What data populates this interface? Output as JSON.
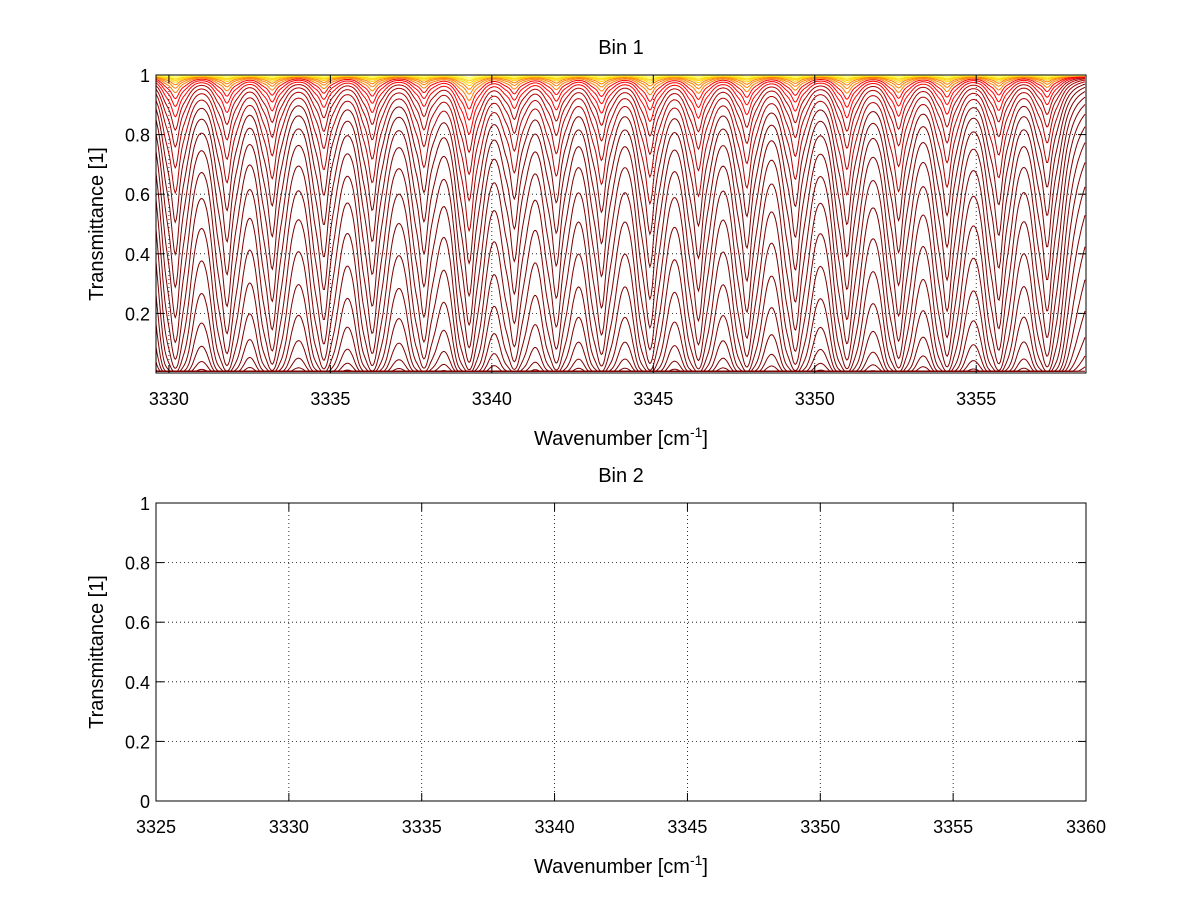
{
  "chart_data": [
    {
      "type": "line",
      "title": "Bin 1",
      "xlabel": "Wavenumber [cm",
      "xlabel_sup": "-1",
      "xlabel_end": "]",
      "ylabel": "Transmittance [1]",
      "xlim": [
        3329.6,
        3358.4
      ],
      "ylim": [
        0,
        1
      ],
      "xticks": [
        "3330",
        "3335",
        "3340",
        "3345",
        "3350",
        "3355"
      ],
      "xtick_values": [
        3330,
        3335,
        3340,
        3345,
        3350,
        3355
      ],
      "yticks": [
        "0.2",
        "0.4",
        "0.6",
        "0.8",
        "1"
      ],
      "ytick_values": [
        0.2,
        0.4,
        0.6,
        0.8,
        1
      ],
      "grid": true,
      "line_positions": [
        3330.2,
        3331.8,
        3333.2,
        3334.8,
        3336.3,
        3337.9,
        3339.3,
        3340.7,
        3342.0,
        3343.4,
        3344.9,
        3346.4,
        3347.9,
        3349.4,
        3351.0,
        3352.6,
        3354.1,
        3355.7,
        3357.2
      ],
      "line_strengths": [
        1.1,
        0.95,
        0.9,
        0.8,
        0.95,
        0.75,
        1.6,
        0.8,
        0.85,
        0.95,
        1.2,
        1.1,
        1.0,
        0.9,
        1.1,
        1.05,
        1.0,
        0.9,
        0.75
      ],
      "series_count": 34,
      "colors": [
        "#7f0000",
        "#b00000",
        "#ff0000",
        "#ff7f00",
        "#ffd000",
        "#ffff60"
      ]
    },
    {
      "type": "line",
      "title": "Bin 2",
      "xlabel": "Wavenumber [cm",
      "xlabel_sup": "-1",
      "xlabel_end": "]",
      "ylabel": "Transmittance [1]",
      "xlim": [
        3325,
        3360
      ],
      "ylim": [
        0,
        1
      ],
      "xticks": [
        "3325",
        "3330",
        "3335",
        "3340",
        "3345",
        "3350",
        "3355",
        "3360"
      ],
      "xtick_values": [
        3325,
        3330,
        3335,
        3340,
        3345,
        3350,
        3355,
        3360
      ],
      "yticks": [
        "0",
        "0.2",
        "0.4",
        "0.6",
        "0.8",
        "1"
      ],
      "ytick_values": [
        0,
        0.2,
        0.4,
        0.6,
        0.8,
        1
      ],
      "grid": true,
      "series": []
    }
  ]
}
